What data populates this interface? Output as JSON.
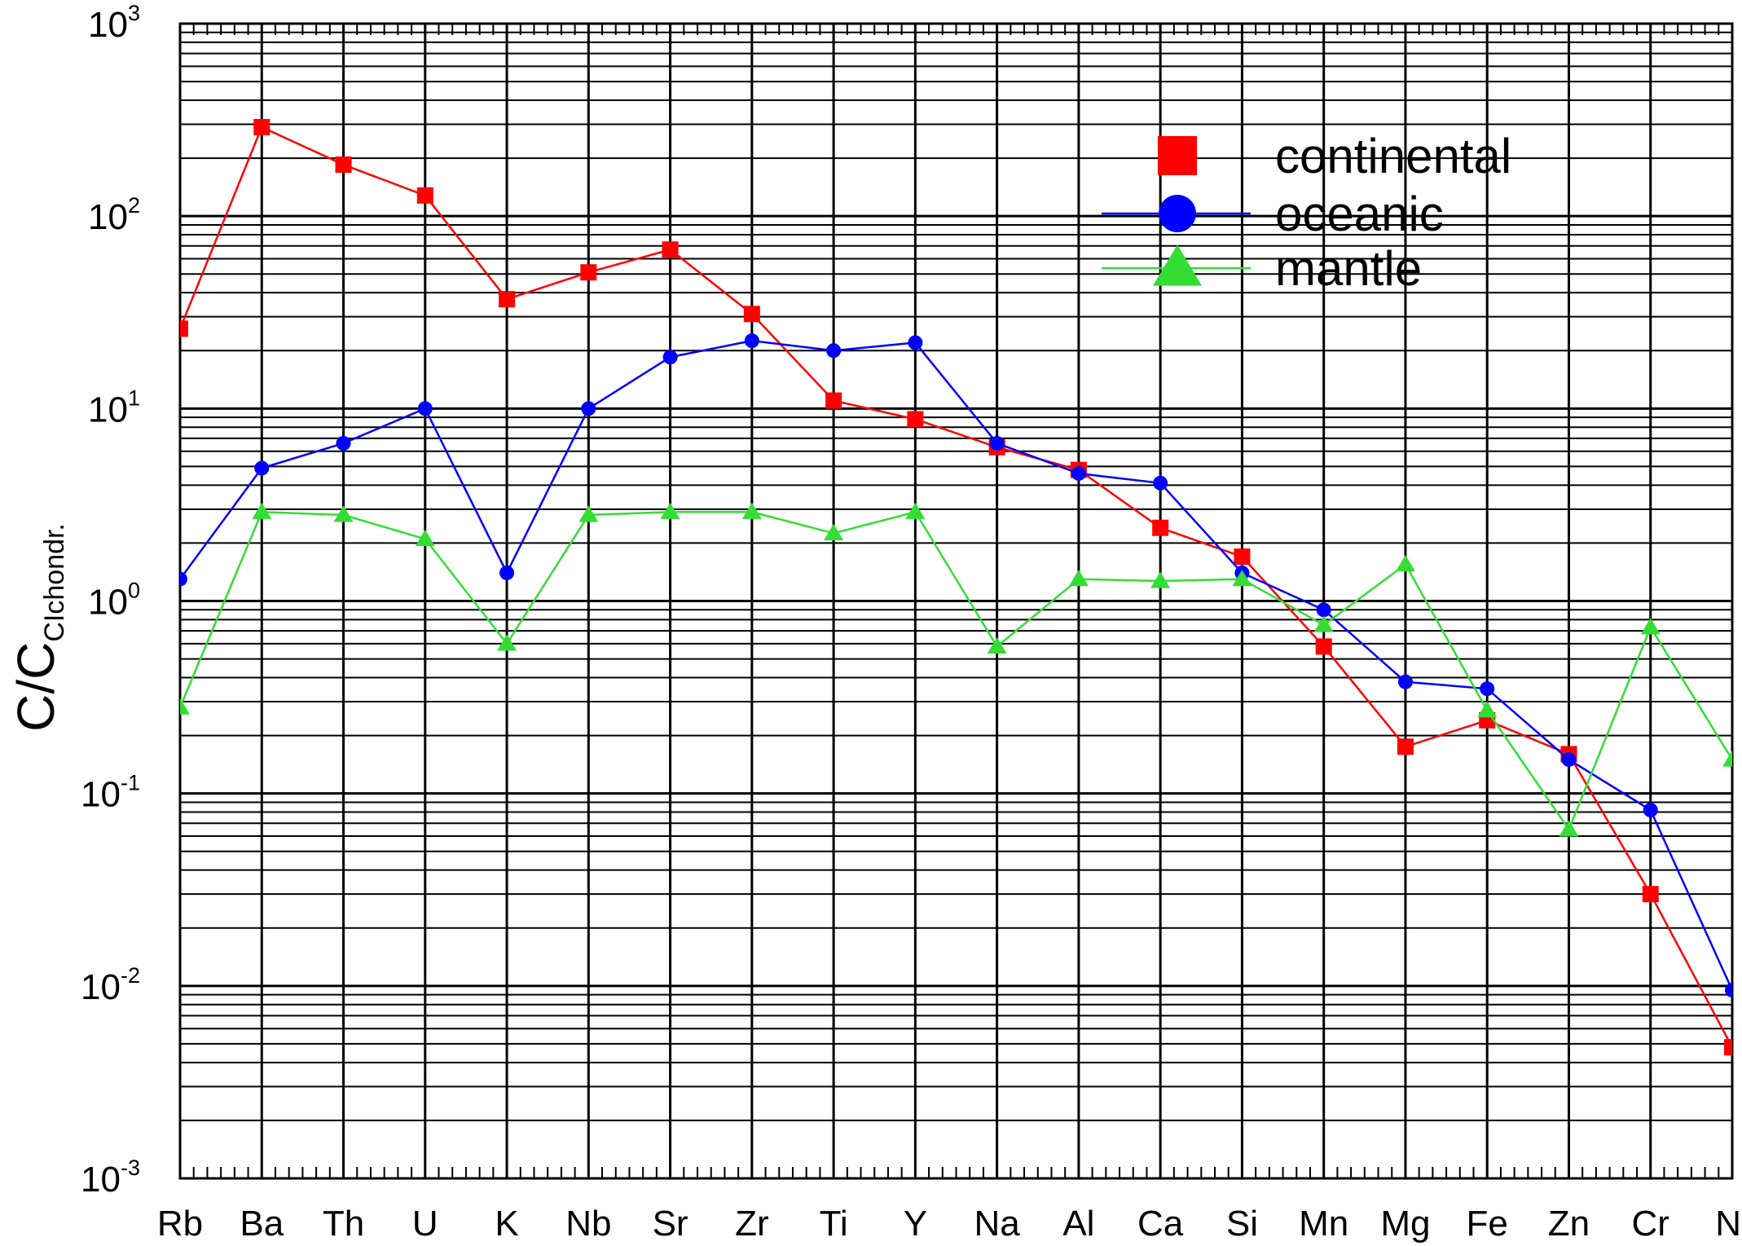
{
  "chart_data": {
    "type": "line",
    "ylabel": {
      "main": "C/C",
      "sub": "CIchondr."
    },
    "yscale": "log",
    "ylim": [
      0.001,
      1000
    ],
    "y_ticks": [
      {
        "base": "10",
        "exp": "-3"
      },
      {
        "base": "10",
        "exp": "-2"
      },
      {
        "base": "10",
        "exp": "-1"
      },
      {
        "base": "10",
        "exp": "0"
      },
      {
        "base": "10",
        "exp": "1"
      },
      {
        "base": "10",
        "exp": "2"
      },
      {
        "base": "10",
        "exp": "3"
      }
    ],
    "categories": [
      "Rb",
      "Ba",
      "Th",
      "U",
      "K",
      "Nb",
      "Sr",
      "Zr",
      "Ti",
      "Y",
      "Na",
      "Al",
      "Ca",
      "Si",
      "Mn",
      "Mg",
      "Fe",
      "Zn",
      "Cr",
      "Ni"
    ],
    "grid": true,
    "legend_position": "top-right",
    "series": [
      {
        "name": "continental",
        "color": "#ff0000",
        "marker": "square",
        "values": [
          26,
          290,
          185,
          128,
          37,
          51,
          67,
          31,
          11,
          8.8,
          6.3,
          4.8,
          2.4,
          1.7,
          0.58,
          0.175,
          0.24,
          0.16,
          0.03,
          0.0048
        ]
      },
      {
        "name": "oceanic",
        "color": "#0000ff",
        "marker": "circle",
        "values": [
          1.3,
          4.9,
          6.6,
          10,
          1.4,
          10,
          18.5,
          22.5,
          20,
          22,
          6.6,
          4.6,
          4.1,
          1.4,
          0.9,
          0.38,
          0.35,
          0.15,
          0.082,
          0.0095
        ]
      },
      {
        "name": "mantle",
        "color": "#33dd33",
        "marker": "triangle",
        "values": [
          0.28,
          2.9,
          2.8,
          2.1,
          0.6,
          2.8,
          2.9,
          2.9,
          2.25,
          2.9,
          0.58,
          1.3,
          1.27,
          1.3,
          0.75,
          1.55,
          0.27,
          0.065,
          0.73,
          0.15
        ]
      }
    ]
  }
}
